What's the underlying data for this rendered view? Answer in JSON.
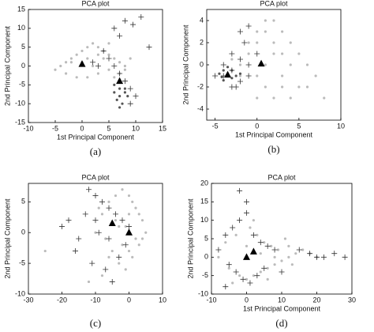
{
  "chart_data": [
    {
      "type": "scatter",
      "title": "PCA plot",
      "xlabel": "1st Principal Component",
      "ylabel": "2nd Principal Component",
      "caption": "(a)",
      "xlim": [
        -10,
        15
      ],
      "xticks": [
        -10,
        -5,
        0,
        5,
        10,
        15
      ],
      "ylim": [
        -15,
        15
      ],
      "yticks": [
        -15,
        -10,
        -5,
        0,
        5,
        10,
        15
      ],
      "series": [
        {
          "marker": "dot",
          "color": "#bbbbbb",
          "x": [
            -5,
            -4,
            -3,
            -2,
            -1,
            0,
            1,
            2,
            3,
            4,
            5,
            6,
            7,
            8,
            -3,
            -1,
            1,
            3,
            5,
            7,
            0,
            2,
            4,
            6,
            -2,
            1,
            3,
            5,
            8,
            9
          ],
          "y": [
            -1,
            0,
            1,
            2,
            3,
            4,
            5,
            6,
            5,
            4,
            3,
            2,
            1,
            0,
            -2,
            -3,
            -3,
            -2,
            -1,
            -2,
            1,
            0,
            2,
            -3,
            1,
            2,
            3,
            6,
            -1,
            2
          ]
        },
        {
          "marker": "dot",
          "color": "#555555",
          "x": [
            6,
            7,
            8,
            7,
            6.5,
            8,
            7.5,
            6,
            8.5,
            7
          ],
          "y": [
            -5,
            -6,
            -7,
            -8,
            -9,
            -6,
            -10,
            -7,
            -8,
            -11
          ]
        },
        {
          "marker": "plus",
          "color": "#333333",
          "x": [
            5,
            6,
            7,
            8,
            9,
            10,
            7,
            6,
            8,
            9,
            4,
            3,
            2,
            11,
            12.5,
            9.5
          ],
          "y": [
            2,
            0,
            -2,
            -4,
            -6,
            -8,
            8,
            10,
            12,
            -10,
            4,
            0,
            1,
            13,
            5,
            11
          ]
        },
        {
          "marker": "triangle",
          "color": "#000000",
          "x": [
            0,
            7
          ],
          "y": [
            0.5,
            -4
          ]
        }
      ]
    },
    {
      "type": "scatter",
      "title": "PCA plot",
      "xlabel": "1st Principal Component",
      "ylabel": "2nd Principal Component",
      "caption": "(b)",
      "xlim": [
        -6,
        10
      ],
      "xticks": [
        -5,
        0,
        5,
        10
      ],
      "ylim": [
        -5,
        5
      ],
      "yticks": [
        -4,
        -2,
        0,
        2,
        4
      ],
      "series": [
        {
          "marker": "dot",
          "color": "#bbbbbb",
          "x": [
            -2,
            -1,
            0,
            1,
            2,
            3,
            4,
            5,
            6,
            7,
            0,
            1,
            2,
            3,
            -1,
            0,
            1,
            2,
            3,
            4,
            5,
            -2,
            0,
            2,
            4,
            6,
            1,
            3,
            8,
            -3
          ],
          "y": [
            0,
            1,
            2,
            3,
            4,
            3,
            2,
            1,
            0,
            -1,
            -1,
            -2,
            -3,
            -2,
            2,
            3,
            0,
            1,
            -1,
            -3,
            -2,
            -1,
            -3,
            2,
            0,
            -2,
            4,
            1,
            -3,
            0.5
          ]
        },
        {
          "marker": "dot",
          "color": "#555555",
          "x": [
            -4,
            -3.5,
            -3,
            -4.5,
            -3,
            -2.5,
            -4,
            -3.5,
            -2,
            -4.2
          ],
          "y": [
            -0.5,
            -1,
            -1.2,
            -0.8,
            -0.5,
            -1,
            -1.4,
            -0.2,
            -0.8,
            -1.1
          ]
        },
        {
          "marker": "plus",
          "color": "#333333",
          "x": [
            -4,
            -3,
            -2,
            -1,
            -5,
            -3,
            -2,
            -1,
            0,
            -2,
            -1,
            -4,
            -3,
            -2.5,
            -1.5
          ],
          "y": [
            -1,
            -0.5,
            -1.5,
            0,
            -1,
            -2,
            0.5,
            -1,
            1,
            3,
            3.5,
            0,
            1,
            -2,
            2
          ]
        },
        {
          "marker": "triangle",
          "color": "#000000",
          "x": [
            -3.5,
            0.5
          ],
          "y": [
            -0.9,
            0.1
          ]
        }
      ]
    },
    {
      "type": "scatter",
      "title": "PCA plot",
      "ylabel": "2nd Principal Component",
      "caption": "(c)",
      "xlim": [
        -30,
        10
      ],
      "xticks": [
        -30,
        -20,
        -10,
        0,
        10
      ],
      "ylim": [
        -10,
        8
      ],
      "yticks": [
        -10,
        -5,
        0,
        5
      ],
      "series": [
        {
          "marker": "dot",
          "color": "#bbbbbb",
          "x": [
            -10,
            -8,
            -6,
            -4,
            -2,
            0,
            2,
            4,
            5,
            -5,
            -3,
            -1,
            1,
            3,
            -7,
            -4,
            -2,
            0,
            2,
            -9,
            -6,
            -3,
            0,
            3,
            -25,
            -12,
            -8,
            -1,
            1,
            4
          ],
          "y": [
            0,
            3,
            5,
            6,
            7,
            6,
            4,
            2,
            0,
            -3,
            -5,
            -6,
            -4,
            -2,
            -1,
            2,
            -2,
            3,
            -1,
            4,
            -4,
            1,
            -3,
            3,
            -3,
            -8,
            -7,
            1,
            5,
            -1
          ]
        },
        {
          "marker": "plus",
          "color": "#333333",
          "x": [
            -20,
            -18,
            -15,
            -12,
            -10,
            -8,
            -6,
            -4,
            -2,
            0,
            -11,
            -7,
            -3,
            -13,
            -9,
            -5,
            -1,
            -16,
            -6,
            -10
          ],
          "y": [
            1,
            2,
            -1,
            7,
            6,
            5,
            4,
            3,
            2,
            1,
            -5,
            -6,
            -4,
            3,
            0,
            -8,
            -2,
            -3,
            -1,
            2
          ]
        },
        {
          "marker": "triangle",
          "color": "#000000",
          "x": [
            -5,
            0
          ],
          "y": [
            1.5,
            0
          ]
        }
      ]
    },
    {
      "type": "scatter",
      "title": "PCA plot",
      "xlabel": "1st Principal Component",
      "ylabel": "2nd Principal Component",
      "caption": "(d)",
      "xlim": [
        -10,
        30
      ],
      "xticks": [
        -10,
        0,
        10,
        20,
        30
      ],
      "ylim": [
        -10,
        20
      ],
      "yticks": [
        -10,
        -5,
        0,
        5,
        10,
        15,
        20
      ],
      "series": [
        {
          "marker": "dot",
          "color": "#bbbbbb",
          "x": [
            -8,
            -5,
            -2,
            0,
            2,
            4,
            6,
            8,
            10,
            12,
            14,
            16,
            18,
            20,
            -6,
            -3,
            1,
            3,
            5,
            7,
            9,
            11,
            13,
            -4,
            0,
            4,
            8,
            12,
            2,
            6
          ],
          "y": [
            0,
            -3,
            -5,
            -6,
            -5,
            -4,
            -3,
            -2,
            -1,
            0,
            1,
            2,
            1,
            0,
            4,
            6,
            8,
            6,
            4,
            3,
            2,
            5,
            -2,
            -7,
            3,
            1,
            0,
            3,
            10,
            -6
          ]
        },
        {
          "marker": "plus",
          "color": "#333333",
          "x": [
            -8,
            -6,
            -4,
            -2,
            0,
            2,
            4,
            6,
            8,
            -5,
            -3,
            -1,
            1,
            3,
            5,
            15,
            18,
            20,
            22,
            25,
            28,
            -2,
            0,
            -6,
            10
          ],
          "y": [
            2,
            6,
            8,
            10,
            12,
            6,
            4,
            3,
            2,
            -2,
            -4,
            -6,
            -7,
            -5,
            -3,
            2,
            1,
            0,
            0,
            1,
            0,
            18,
            15,
            -8,
            -4
          ]
        },
        {
          "marker": "triangle",
          "color": "#000000",
          "x": [
            0,
            2
          ],
          "y": [
            0,
            1.5
          ]
        }
      ]
    }
  ]
}
